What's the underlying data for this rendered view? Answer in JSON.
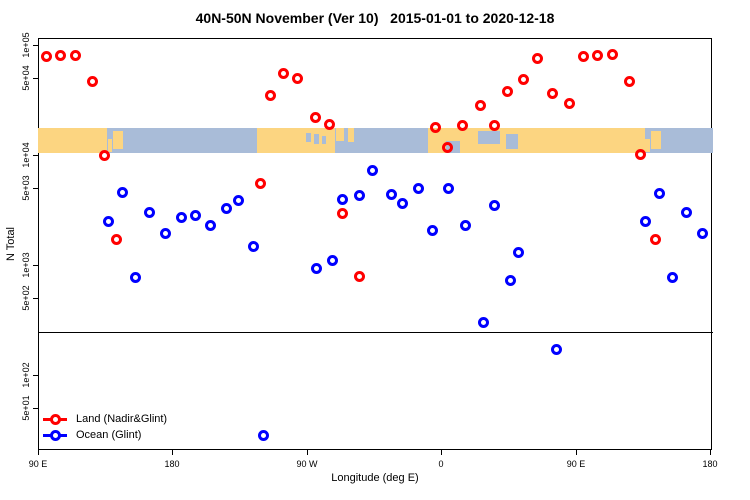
{
  "title": "40N-50N November (Ver 10)   2015-01-01 to 2020-12-18",
  "legend": {
    "items": [
      {
        "label": "Land (Nadir&Glint)",
        "color": "#ff0000"
      },
      {
        "label": "Ocean (Glint)",
        "color": "#0000ff"
      }
    ]
  },
  "chart_data": {
    "type": "scatter",
    "title": "40N-50N November (Ver 10)   2015-01-01 to 2020-12-18",
    "xlabel": "Longitude (deg E)",
    "ylabel": "N Total",
    "x_axis": {
      "range_deg_plotted": [
        90,
        540
      ],
      "ticks": [
        {
          "lon": 90,
          "label": "90 E"
        },
        {
          "lon": 180,
          "label": "180"
        },
        {
          "lon": 270,
          "label": "90 W"
        },
        {
          "lon": 360,
          "label": "0"
        },
        {
          "lon": 450,
          "label": "90 E"
        },
        {
          "lon": 540,
          "label": "180"
        }
      ]
    },
    "y_axis": {
      "scale": "log10",
      "ticks": [
        {
          "n": 100000,
          "label": "1e+05"
        },
        {
          "n": 50000,
          "label": "5e+04"
        },
        {
          "n": 10000,
          "label": "1e+04"
        },
        {
          "n": 5000,
          "label": "5e+03"
        },
        {
          "n": 1000,
          "label": "1e+03"
        },
        {
          "n": 500,
          "label": "5e+02"
        },
        {
          "n": 100,
          "label": "1e+02"
        },
        {
          "n": 50,
          "label": "5e+01"
        }
      ]
    },
    "threshold_line_n": 245,
    "map_strip": {
      "n_top": 17600,
      "n_bottom": 10400,
      "land_color": "#fcd581",
      "ocean_color": "#a9bcd8",
      "land_segments": [
        [
          90,
          136,
          0,
          1
        ],
        [
          136.6,
          139.4,
          0.45,
          0.5
        ],
        [
          140,
          147,
          0.12,
          0.72
        ],
        [
          236.6,
          288.6,
          0,
          1
        ],
        [
          289.8,
          294.6,
          0,
          0.5
        ],
        [
          297.9,
          301.9,
          0,
          0.55
        ],
        [
          351.3,
          496.3,
          0,
          1
        ],
        [
          496.8,
          499.6,
          0.45,
          0.5
        ],
        [
          500.2,
          507.2,
          0.12,
          0.72
        ]
      ],
      "water_patches": [
        [
          269.5,
          272.5,
          0.2,
          0.35
        ],
        [
          274.5,
          278.5,
          0.25,
          0.4
        ],
        [
          280,
          283,
          0.3,
          0.35
        ],
        [
          363.3,
          372.7,
          0.5,
          0.5
        ],
        [
          384.7,
          399.3,
          0.1,
          0.55
        ],
        [
          403.3,
          411.3,
          0.25,
          0.6
        ]
      ]
    },
    "series": [
      {
        "name": "Land (Nadir&Glint)",
        "color": "#ff0000",
        "marker": "open-circle",
        "points": [
          {
            "lon": 95.4,
            "n": 79400
          },
          {
            "lon": 105.4,
            "n": 81100
          },
          {
            "lon": 114.8,
            "n": 81100
          },
          {
            "lon": 126.2,
            "n": 46100
          },
          {
            "lon": 134.2,
            "n": 10000
          },
          {
            "lon": 142.9,
            "n": 1690
          },
          {
            "lon": 238.7,
            "n": 5450
          },
          {
            "lon": 245.4,
            "n": 35100
          },
          {
            "lon": 254.7,
            "n": 55600
          },
          {
            "lon": 264.1,
            "n": 50100
          },
          {
            "lon": 275.5,
            "n": 21700
          },
          {
            "lon": 285.5,
            "n": 19100
          },
          {
            "lon": 293.6,
            "n": 2910
          },
          {
            "lon": 305.0,
            "n": 778
          },
          {
            "lon": 356.5,
            "n": 17600
          },
          {
            "lon": 364.5,
            "n": 11600
          },
          {
            "lon": 374.6,
            "n": 18700
          },
          {
            "lon": 386.0,
            "n": 27900
          },
          {
            "lon": 396.0,
            "n": 18700
          },
          {
            "lon": 404.7,
            "n": 37400
          },
          {
            "lon": 415.4,
            "n": 48100
          },
          {
            "lon": 424.8,
            "n": 74600
          },
          {
            "lon": 434.8,
            "n": 36600
          },
          {
            "lon": 445.6,
            "n": 29100
          },
          {
            "lon": 455.0,
            "n": 77800
          },
          {
            "lon": 465.0,
            "n": 81100
          },
          {
            "lon": 474.4,
            "n": 82800
          },
          {
            "lon": 485.8,
            "n": 46100
          },
          {
            "lon": 493.8,
            "n": 10200
          },
          {
            "lon": 503.2,
            "n": 1690
          }
        ]
      },
      {
        "name": "Ocean (Glint)",
        "color": "#0000ff",
        "marker": "open-circle",
        "points": [
          {
            "lon": 136.9,
            "n": 2510
          },
          {
            "lon": 146.9,
            "n": 4520
          },
          {
            "lon": 155.6,
            "n": 762
          },
          {
            "lon": 165.0,
            "n": 2970
          },
          {
            "lon": 175.7,
            "n": 1950
          },
          {
            "lon": 185.8,
            "n": 2730
          },
          {
            "lon": 195.8,
            "n": 2790
          },
          {
            "lon": 205.8,
            "n": 2310
          },
          {
            "lon": 215.9,
            "n": 3230
          },
          {
            "lon": 224.6,
            "n": 3820
          },
          {
            "lon": 234.0,
            "n": 1460
          },
          {
            "lon": 240.7,
            "n": 27.9
          },
          {
            "lon": 276.8,
            "n": 920
          },
          {
            "lon": 287.5,
            "n": 1110
          },
          {
            "lon": 294.2,
            "n": 3980
          },
          {
            "lon": 305.6,
            "n": 4240
          },
          {
            "lon": 314.3,
            "n": 7160
          },
          {
            "lon": 326.4,
            "n": 4420
          },
          {
            "lon": 334.4,
            "n": 3590
          },
          {
            "lon": 345.1,
            "n": 4910
          },
          {
            "lon": 354.5,
            "n": 2040
          },
          {
            "lon": 365.2,
            "n": 4910
          },
          {
            "lon": 376.6,
            "n": 2310
          },
          {
            "lon": 388.0,
            "n": 297
          },
          {
            "lon": 395.4,
            "n": 3440
          },
          {
            "lon": 406.1,
            "n": 716
          },
          {
            "lon": 412.1,
            "n": 1310
          },
          {
            "lon": 437.5,
            "n": 172
          },
          {
            "lon": 496.5,
            "n": 2510
          },
          {
            "lon": 506.5,
            "n": 4460
          },
          {
            "lon": 515.2,
            "n": 762
          },
          {
            "lon": 524.6,
            "n": 2970
          },
          {
            "lon": 535.3,
            "n": 1950
          }
        ]
      }
    ]
  }
}
